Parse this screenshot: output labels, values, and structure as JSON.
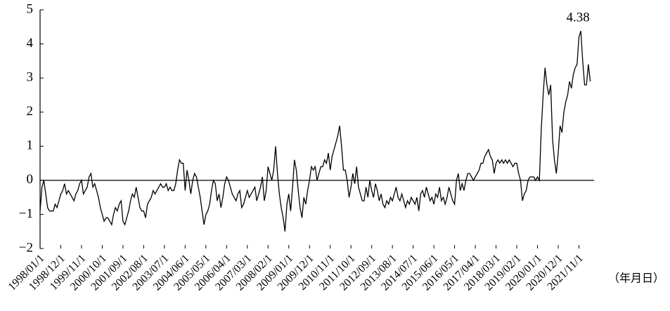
{
  "chart_data": {
    "type": "line",
    "color": "#000000",
    "x_label": "（年月日）",
    "ylim": [
      -2,
      5
    ],
    "yticks": [
      {
        "value": -2,
        "label": "−2"
      },
      {
        "value": -1,
        "label": "−1"
      },
      0,
      1,
      2,
      3,
      4,
      5
    ],
    "categories": [
      "1998/01/1",
      null,
      null,
      null,
      null,
      null,
      null,
      null,
      null,
      null,
      null,
      "1998/12/1",
      null,
      null,
      null,
      null,
      null,
      null,
      null,
      null,
      null,
      null,
      "1999/11/1",
      null,
      null,
      null,
      null,
      null,
      null,
      null,
      null,
      null,
      null,
      "2000/10/1",
      null,
      null,
      null,
      null,
      null,
      null,
      null,
      null,
      null,
      null,
      "2001/09/1",
      null,
      null,
      null,
      null,
      null,
      null,
      null,
      null,
      null,
      null,
      "2002/08/1",
      null,
      null,
      null,
      null,
      null,
      null,
      null,
      null,
      null,
      null,
      "2003/07/1",
      null,
      null,
      null,
      null,
      null,
      null,
      null,
      null,
      null,
      null,
      "2004/06/1",
      null,
      null,
      null,
      null,
      null,
      null,
      null,
      null,
      null,
      null,
      "2005/05/1",
      null,
      null,
      null,
      null,
      null,
      null,
      null,
      null,
      null,
      null,
      "2006/04/1",
      null,
      null,
      null,
      null,
      null,
      null,
      null,
      null,
      null,
      null,
      "2007/03/1",
      null,
      null,
      null,
      null,
      null,
      null,
      null,
      null,
      null,
      null,
      "2008/02/1",
      null,
      null,
      null,
      null,
      null,
      null,
      null,
      null,
      null,
      null,
      "2009/01/1",
      null,
      null,
      null,
      null,
      null,
      null,
      null,
      null,
      null,
      null,
      "2009/12/1",
      null,
      null,
      null,
      null,
      null,
      null,
      null,
      null,
      null,
      null,
      "2010/11/1",
      null,
      null,
      null,
      null,
      null,
      null,
      null,
      null,
      null,
      null,
      "2011/10/1",
      null,
      null,
      null,
      null,
      null,
      null,
      null,
      null,
      null,
      null,
      "2012/09/1",
      null,
      null,
      null,
      null,
      null,
      null,
      null,
      null,
      null,
      null,
      "2013/08/1",
      null,
      null,
      null,
      null,
      null,
      null,
      null,
      null,
      null,
      null,
      "2014/07/1",
      null,
      null,
      null,
      null,
      null,
      null,
      null,
      null,
      null,
      null,
      "2015/06/1",
      null,
      null,
      null,
      null,
      null,
      null,
      null,
      null,
      null,
      null,
      "2016/05/1",
      null,
      null,
      null,
      null,
      null,
      null,
      null,
      null,
      null,
      null,
      "2017/04/1",
      null,
      null,
      null,
      null,
      null,
      null,
      null,
      null,
      null,
      null,
      "2018/03/1",
      null,
      null,
      null,
      null,
      null,
      null,
      null,
      null,
      null,
      null,
      "2019/02/1",
      null,
      null,
      null,
      null,
      null,
      null,
      null,
      null,
      null,
      null,
      "2020/01/1",
      null,
      null,
      null,
      null,
      null,
      null,
      null,
      null,
      null,
      null,
      "2020/12/1",
      null,
      null,
      null,
      null,
      null,
      null,
      null,
      null,
      null,
      null,
      "2021/11/1",
      null,
      null,
      null,
      null,
      null,
      null
    ],
    "values": [
      -0.9,
      -0.2,
      0.0,
      -0.4,
      -0.8,
      -0.9,
      -0.9,
      -0.9,
      -0.7,
      -0.8,
      -0.6,
      -0.4,
      -0.3,
      -0.1,
      -0.4,
      -0.3,
      -0.4,
      -0.5,
      -0.6,
      -0.4,
      -0.3,
      -0.1,
      0.0,
      -0.4,
      -0.3,
      -0.2,
      0.1,
      0.2,
      -0.2,
      -0.1,
      -0.3,
      -0.5,
      -0.8,
      -1.0,
      -1.2,
      -1.1,
      -1.1,
      -1.2,
      -1.3,
      -1.0,
      -0.8,
      -0.9,
      -0.7,
      -0.6,
      -1.2,
      -1.3,
      -1.1,
      -0.9,
      -0.6,
      -0.4,
      -0.5,
      -0.2,
      -0.5,
      -0.8,
      -0.9,
      -0.9,
      -1.1,
      -0.7,
      -0.6,
      -0.5,
      -0.3,
      -0.4,
      -0.3,
      -0.2,
      -0.1,
      -0.2,
      -0.2,
      -0.1,
      -0.3,
      -0.2,
      -0.3,
      -0.3,
      -0.1,
      0.3,
      0.6,
      0.5,
      0.5,
      -0.3,
      0.3,
      0.0,
      -0.4,
      0.0,
      0.2,
      0.1,
      -0.2,
      -0.5,
      -0.9,
      -1.3,
      -1.0,
      -0.9,
      -0.7,
      -0.3,
      0.0,
      -0.1,
      -0.6,
      -0.4,
      -0.8,
      -0.5,
      -0.1,
      0.1,
      0.0,
      -0.2,
      -0.4,
      -0.5,
      -0.6,
      -0.4,
      -0.3,
      -0.8,
      -0.7,
      -0.5,
      -0.3,
      -0.5,
      -0.4,
      -0.3,
      -0.2,
      -0.6,
      -0.4,
      -0.2,
      0.1,
      -0.6,
      -0.3,
      0.4,
      0.2,
      0.0,
      0.3,
      1.0,
      0.2,
      -0.4,
      -0.8,
      -1.1,
      -1.5,
      -0.7,
      -0.4,
      -0.9,
      -0.2,
      0.6,
      0.3,
      -0.3,
      -0.8,
      -1.1,
      -0.5,
      -0.7,
      -0.3,
      0.0,
      0.4,
      0.3,
      0.4,
      0.0,
      0.2,
      0.4,
      0.4,
      0.6,
      0.5,
      0.8,
      0.3,
      0.7,
      0.9,
      1.1,
      1.3,
      1.6,
      1.0,
      0.3,
      0.3,
      0.0,
      -0.5,
      -0.2,
      0.2,
      -0.1,
      0.4,
      -0.2,
      -0.4,
      -0.6,
      -0.6,
      -0.2,
      -0.5,
      0.0,
      -0.3,
      -0.5,
      -0.1,
      -0.3,
      -0.6,
      -0.4,
      -0.7,
      -0.8,
      -0.6,
      -0.7,
      -0.5,
      -0.6,
      -0.4,
      -0.2,
      -0.5,
      -0.6,
      -0.4,
      -0.6,
      -0.8,
      -0.6,
      -0.7,
      -0.5,
      -0.6,
      -0.7,
      -0.5,
      -0.9,
      -0.4,
      -0.3,
      -0.5,
      -0.2,
      -0.4,
      -0.6,
      -0.5,
      -0.7,
      -0.4,
      -0.5,
      -0.2,
      -0.6,
      -0.5,
      -0.7,
      -0.5,
      -0.2,
      -0.4,
      -0.6,
      -0.7,
      0.0,
      0.2,
      -0.3,
      -0.1,
      -0.3,
      0.0,
      0.2,
      0.2,
      0.1,
      0.0,
      0.1,
      0.2,
      0.3,
      0.5,
      0.5,
      0.7,
      0.8,
      0.9,
      0.7,
      0.6,
      0.2,
      0.5,
      0.6,
      0.5,
      0.6,
      0.5,
      0.6,
      0.5,
      0.6,
      0.5,
      0.4,
      0.5,
      0.5,
      0.2,
      0.0,
      -0.6,
      -0.4,
      -0.3,
      0.0,
      0.1,
      0.1,
      0.1,
      0.0,
      0.1,
      0.0,
      1.5,
      2.5,
      3.3,
      2.8,
      2.5,
      2.8,
      1.2,
      0.6,
      0.2,
      0.8,
      1.6,
      1.4,
      2.0,
      2.3,
      2.5,
      2.9,
      2.7,
      3.1,
      3.3,
      3.4,
      4.2,
      4.38,
      3.5,
      2.8,
      2.8,
      3.4,
      2.9
    ]
  }
}
